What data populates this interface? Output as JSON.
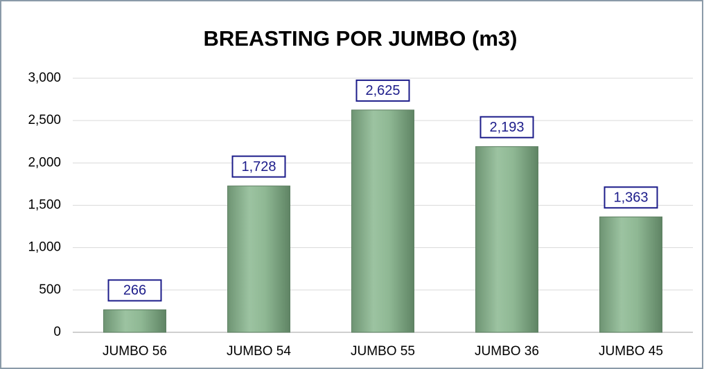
{
  "chart_data": {
    "type": "bar",
    "title": "BREASTING POR JUMBO (m3)",
    "categories": [
      "JUMBO 56",
      "JUMBO 54",
      "JUMBO 55",
      "JUMBO 36",
      "JUMBO 45"
    ],
    "values": [
      266,
      1728,
      2625,
      2193,
      1363
    ],
    "value_labels": [
      "266",
      "1,728",
      "2,625",
      "2,193",
      "1,363"
    ],
    "color": "#8fb894",
    "ylim": [
      0,
      3000
    ],
    "yticks": [
      0,
      500,
      {
        "value": 1000,
        "label": "1,000"
      },
      {
        "value": 1500,
        "label": "1,500"
      },
      {
        "value": 2000,
        "label": "2,000"
      },
      {
        "value": 2500,
        "label": "2,500"
      },
      {
        "value": 3000,
        "label": "3,000"
      }
    ],
    "grid": true
  }
}
